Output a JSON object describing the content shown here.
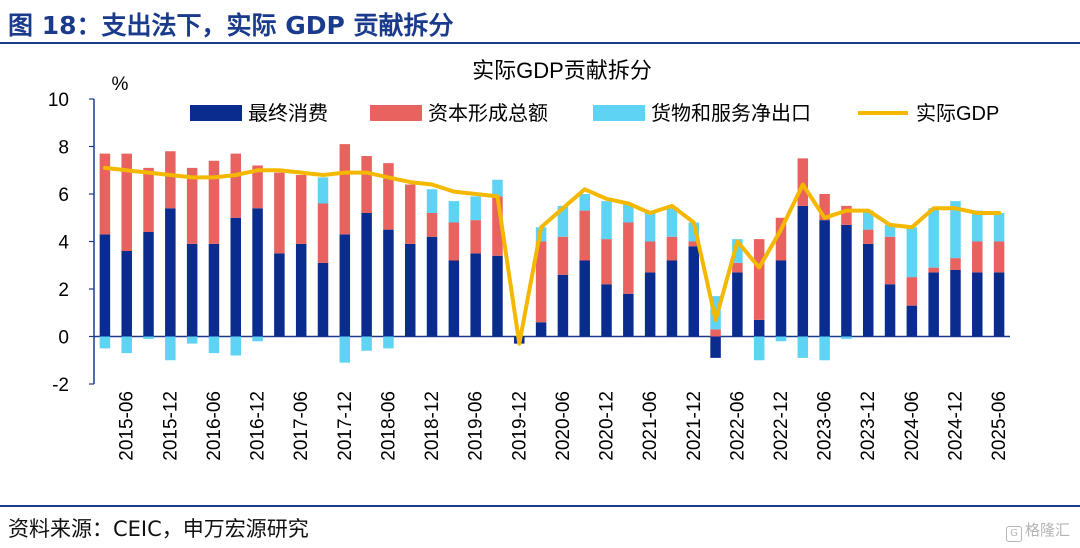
{
  "figure": {
    "heading": "图 18：支出法下，实际 GDP 贡献拆分",
    "source": "资料来源：CEIC，申万宏源研究",
    "watermark": "格隆汇",
    "watermark_icon": "G"
  },
  "colors": {
    "heading": "#1a3a8c",
    "consumption": "#0a2c8f",
    "capital": "#e8625f",
    "netexports": "#5fd3f3",
    "gdp": "#f5b800",
    "axis": "#1a3a8c"
  },
  "chart_data": {
    "type": "bar",
    "title": "实际GDP贡献拆分",
    "ylabel": "%",
    "xlabel": "",
    "ylim": [
      -2,
      10
    ],
    "yticks": [
      -2,
      0,
      2,
      4,
      6,
      8,
      10
    ],
    "categories": [
      "2015-03",
      "2015-06",
      "2015-09",
      "2015-12",
      "2016-03",
      "2016-06",
      "2016-09",
      "2016-12",
      "2017-03",
      "2017-06",
      "2017-09",
      "2017-12",
      "2018-03",
      "2018-06",
      "2018-09",
      "2018-12",
      "2019-03",
      "2019-06",
      "2019-09",
      "2019-12",
      "2020-03",
      "2020-06",
      "2020-09",
      "2020-12",
      "2021-03",
      "2021-06",
      "2021-09",
      "2021-12",
      "2022-03",
      "2022-06",
      "2022-09",
      "2022-12",
      "2023-03",
      "2023-06",
      "2023-09",
      "2023-12",
      "2024-03",
      "2024-06",
      "2024-09",
      "2024-12",
      "2025-03",
      "2025-06"
    ],
    "x_tick_labels": [
      "2015-06",
      "2015-12",
      "2016-06",
      "2016-12",
      "2017-06",
      "2017-12",
      "2018-06",
      "2018-12",
      "2019-06",
      "2019-12",
      "2020-06",
      "2020-12",
      "2021-06",
      "2021-12",
      "2022-06",
      "2022-12",
      "2023-06",
      "2023-12",
      "2024-06",
      "2024-12",
      "2025-06"
    ],
    "series": [
      {
        "name": "最终消费",
        "kind": "bar",
        "color": "#0a2c8f",
        "values": [
          4.3,
          3.6,
          4.4,
          5.4,
          3.9,
          3.9,
          5.0,
          5.4,
          3.5,
          3.9,
          3.1,
          4.3,
          5.2,
          4.5,
          3.9,
          4.2,
          3.2,
          3.5,
          3.4,
          -0.3,
          0.6,
          2.6,
          3.2,
          2.2,
          1.8,
          2.7,
          3.2,
          3.8,
          -0.9,
          2.7,
          0.7,
          3.2,
          5.5,
          4.9,
          4.7,
          3.9,
          2.2,
          1.3,
          2.7,
          2.8,
          2.7,
          2.7
        ]
      },
      {
        "name": "资本形成总额",
        "kind": "bar",
        "color": "#e8625f",
        "values": [
          3.4,
          4.1,
          2.7,
          2.4,
          3.2,
          3.5,
          2.7,
          1.8,
          3.4,
          2.9,
          2.5,
          3.8,
          2.4,
          2.8,
          2.5,
          1.0,
          1.6,
          1.4,
          2.5,
          0.0,
          3.4,
          1.6,
          2.1,
          1.9,
          3.0,
          1.3,
          1.0,
          0.2,
          0.3,
          0.4,
          3.4,
          1.8,
          2.0,
          1.1,
          0.8,
          0.6,
          2.0,
          1.2,
          0.2,
          0.5,
          1.3,
          1.3
        ]
      },
      {
        "name": "货物和服务净出口",
        "kind": "bar",
        "color": "#5fd3f3",
        "values": [
          -0.5,
          -0.7,
          -0.1,
          -1.0,
          -0.3,
          -0.7,
          -0.8,
          -0.2,
          0.0,
          0.0,
          1.1,
          -1.1,
          -0.6,
          -0.5,
          0.0,
          1.0,
          0.9,
          1.0,
          0.7,
          0.0,
          0.6,
          1.3,
          0.7,
          1.6,
          0.8,
          1.2,
          1.2,
          0.8,
          1.4,
          1.0,
          -1.0,
          -0.2,
          -0.9,
          -1.0,
          -0.1,
          0.8,
          0.5,
          2.1,
          2.5,
          2.4,
          1.3,
          1.2
        ]
      },
      {
        "name": "实际GDP",
        "kind": "line",
        "color": "#f5b800",
        "values": [
          7.1,
          7.0,
          6.9,
          6.8,
          6.7,
          6.7,
          6.8,
          7.0,
          7.0,
          6.9,
          6.8,
          6.9,
          6.9,
          6.7,
          6.5,
          6.4,
          6.1,
          6.0,
          5.9,
          -0.3,
          4.6,
          5.4,
          6.2,
          5.8,
          5.6,
          5.2,
          5.5,
          4.8,
          0.7,
          4.0,
          2.9,
          4.5,
          6.4,
          5.0,
          5.3,
          5.3,
          4.7,
          4.6,
          5.4,
          5.4,
          5.2,
          5.2
        ]
      }
    ]
  }
}
